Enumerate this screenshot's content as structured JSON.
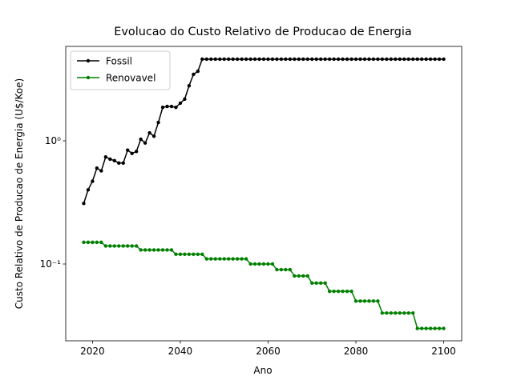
{
  "chart_data": {
    "type": "line",
    "title": "Evolucao do Custo Relativo de Producao de Energia",
    "x_label": "Ano",
    "y_label": "Custo Relativo de Producao de Energia (U$/Koe)",
    "x": [
      2018,
      2019,
      2020,
      2021,
      2022,
      2023,
      2024,
      2025,
      2026,
      2027,
      2028,
      2029,
      2030,
      2031,
      2032,
      2033,
      2034,
      2035,
      2036,
      2037,
      2038,
      2039,
      2040,
      2041,
      2042,
      2043,
      2044,
      2045,
      2046,
      2047,
      2048,
      2049,
      2050,
      2051,
      2052,
      2053,
      2054,
      2055,
      2056,
      2057,
      2058,
      2059,
      2060,
      2061,
      2062,
      2063,
      2064,
      2065,
      2066,
      2067,
      2068,
      2069,
      2070,
      2071,
      2072,
      2073,
      2074,
      2075,
      2076,
      2077,
      2078,
      2079,
      2080,
      2081,
      2082,
      2083,
      2084,
      2085,
      2086,
      2087,
      2088,
      2089,
      2090,
      2091,
      2092,
      2093,
      2094,
      2095,
      2096,
      2097,
      2098,
      2099,
      2100
    ],
    "series": [
      {
        "name": "Fossil",
        "color": "#000000",
        "values": [
          0.31,
          0.4,
          0.47,
          0.6,
          0.57,
          0.74,
          0.71,
          0.69,
          0.66,
          0.66,
          0.84,
          0.79,
          0.82,
          1.03,
          0.96,
          1.16,
          1.09,
          1.41,
          1.87,
          1.9,
          1.9,
          1.87,
          2.02,
          2.18,
          2.8,
          3.46,
          3.67,
          4.6,
          4.6,
          4.6,
          4.6,
          4.6,
          4.6,
          4.6,
          4.6,
          4.6,
          4.6,
          4.6,
          4.6,
          4.6,
          4.6,
          4.6,
          4.6,
          4.6,
          4.6,
          4.6,
          4.6,
          4.6,
          4.6,
          4.6,
          4.6,
          4.6,
          4.6,
          4.6,
          4.6,
          4.6,
          4.6,
          4.6,
          4.6,
          4.6,
          4.6,
          4.6,
          4.6,
          4.6,
          4.6,
          4.6,
          4.6,
          4.6,
          4.6,
          4.6,
          4.6,
          4.6,
          4.6,
          4.6,
          4.6,
          4.6,
          4.6,
          4.6,
          4.6,
          4.6,
          4.6,
          4.6,
          4.6
        ]
      },
      {
        "name": "Renovavel",
        "color": "#008000",
        "values": [
          0.15,
          0.15,
          0.15,
          0.15,
          0.15,
          0.14,
          0.14,
          0.14,
          0.14,
          0.14,
          0.14,
          0.14,
          0.14,
          0.13,
          0.13,
          0.13,
          0.13,
          0.13,
          0.13,
          0.13,
          0.13,
          0.12,
          0.12,
          0.12,
          0.12,
          0.12,
          0.12,
          0.12,
          0.11,
          0.11,
          0.11,
          0.11,
          0.11,
          0.11,
          0.11,
          0.11,
          0.11,
          0.11,
          0.1,
          0.1,
          0.1,
          0.1,
          0.1,
          0.1,
          0.09,
          0.09,
          0.09,
          0.09,
          0.08,
          0.08,
          0.08,
          0.08,
          0.07,
          0.07,
          0.07,
          0.07,
          0.06,
          0.06,
          0.06,
          0.06,
          0.06,
          0.06,
          0.05,
          0.05,
          0.05,
          0.05,
          0.05,
          0.05,
          0.04,
          0.04,
          0.04,
          0.04,
          0.04,
          0.04,
          0.04,
          0.04,
          0.03,
          0.03,
          0.03,
          0.03,
          0.03,
          0.03,
          0.03
        ]
      }
    ],
    "xlim": [
      2013.9,
      2104.1
    ],
    "xticks": [
      2020,
      2040,
      2060,
      2080,
      2100
    ],
    "ylim": [
      0.0238,
      5.84
    ],
    "yticks": [
      {
        "value": 0.1,
        "label": "10⁻¹"
      },
      {
        "value": 1,
        "label": "10⁰"
      }
    ],
    "y_scale": "log",
    "grid": false,
    "legend": "upper left"
  }
}
